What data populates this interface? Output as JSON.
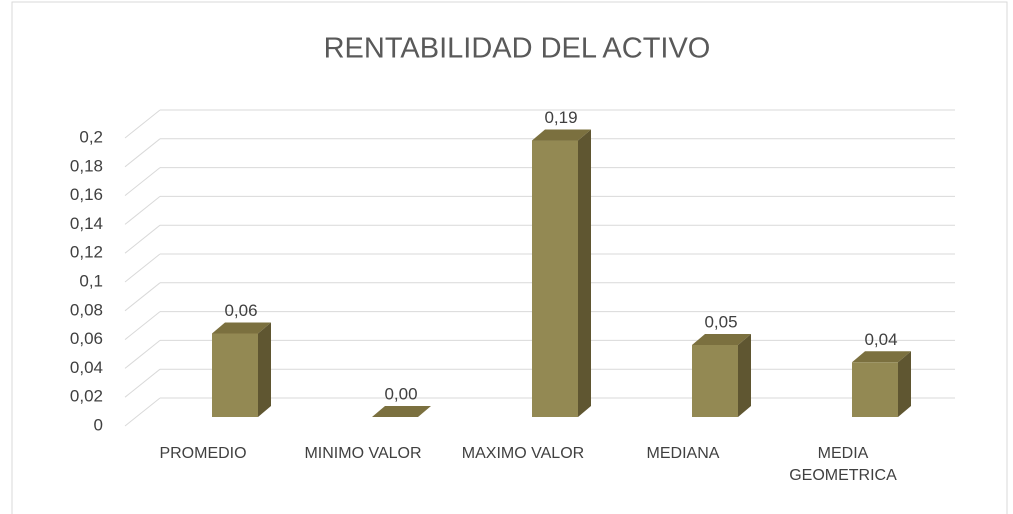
{
  "chart_data": {
    "type": "bar",
    "title": "RENTABILIDAD DEL ACTIVO",
    "categories": [
      "PROMEDIO",
      "MINIMO VALOR",
      "MAXIMO VALOR",
      "MEDIANA",
      "MEDIA GEOMETRICA"
    ],
    "values": [
      0.058,
      0,
      0.192,
      0.05,
      0.038
    ],
    "value_labels": [
      "0,06",
      "0,00",
      "0,19",
      "0,05",
      "0,04"
    ],
    "color": "#938953",
    "ylim": [
      0,
      0.2
    ],
    "yticks": [
      0,
      {
        "value": 0.02,
        "label": "0,02"
      },
      {
        "value": 0.04,
        "label": "0,04"
      },
      {
        "value": 0.06,
        "label": "0,06"
      },
      {
        "value": 0.08,
        "label": "0,08"
      },
      {
        "value": 0.1,
        "label": "0,1"
      },
      {
        "value": 0.12,
        "label": "0,12"
      },
      {
        "value": 0.14,
        "label": "0,14"
      },
      {
        "value": 0.16,
        "label": "0,16"
      },
      {
        "value": 0.18,
        "label": "0,18"
      },
      {
        "value": 0.2,
        "label": "0,2"
      }
    ],
    "grid": true
  }
}
